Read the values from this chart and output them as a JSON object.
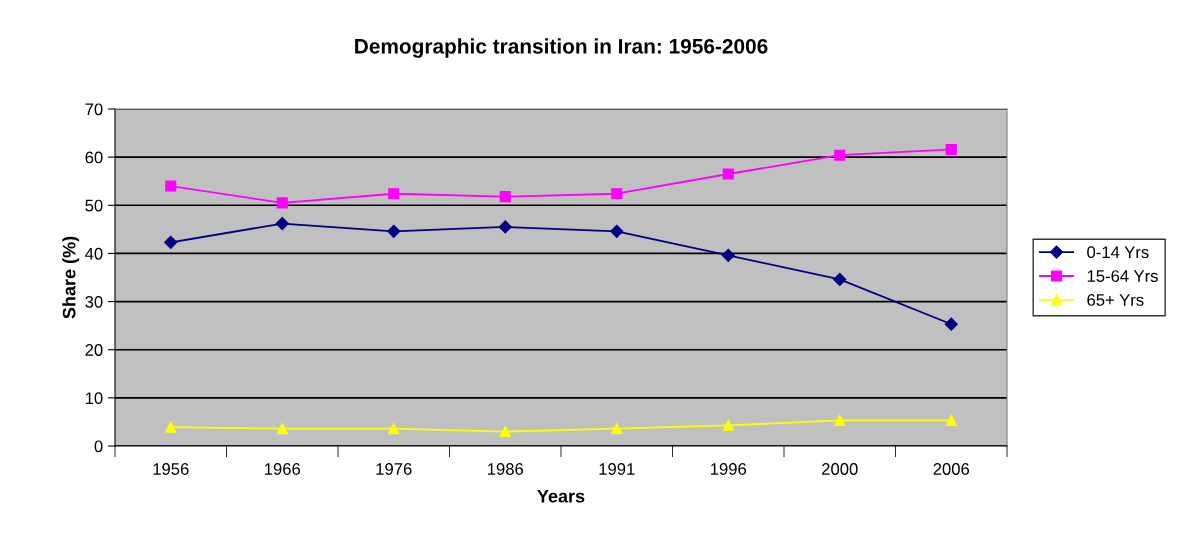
{
  "chart_data": {
    "type": "line",
    "title": "Demographic transition in Iran: 1956-2006",
    "xlabel": "Years",
    "ylabel": "Share (%)",
    "categories": [
      "1956",
      "1966",
      "1976",
      "1986",
      "1991",
      "1996",
      "2000",
      "2006"
    ],
    "series": [
      {
        "name": "0-14 Yrs",
        "color": "#000080",
        "marker": "diamond",
        "values": [
          42.3,
          46.2,
          44.6,
          45.5,
          44.6,
          39.6,
          34.6,
          25.3
        ]
      },
      {
        "name": "15-64 Yrs",
        "color": "#ff00ff",
        "marker": "square",
        "values": [
          54.0,
          50.5,
          52.4,
          51.8,
          52.4,
          56.5,
          60.4,
          61.6
        ]
      },
      {
        "name": "65+ Yrs",
        "color": "#ffff00",
        "marker": "triangle",
        "values": [
          3.9,
          3.6,
          3.6,
          3.0,
          3.6,
          4.3,
          5.3,
          5.3
        ]
      }
    ],
    "ylim": [
      0,
      70
    ],
    "yticks": [
      0,
      10,
      20,
      30,
      40,
      50,
      60,
      70
    ],
    "grid": "y",
    "legend": "right"
  }
}
